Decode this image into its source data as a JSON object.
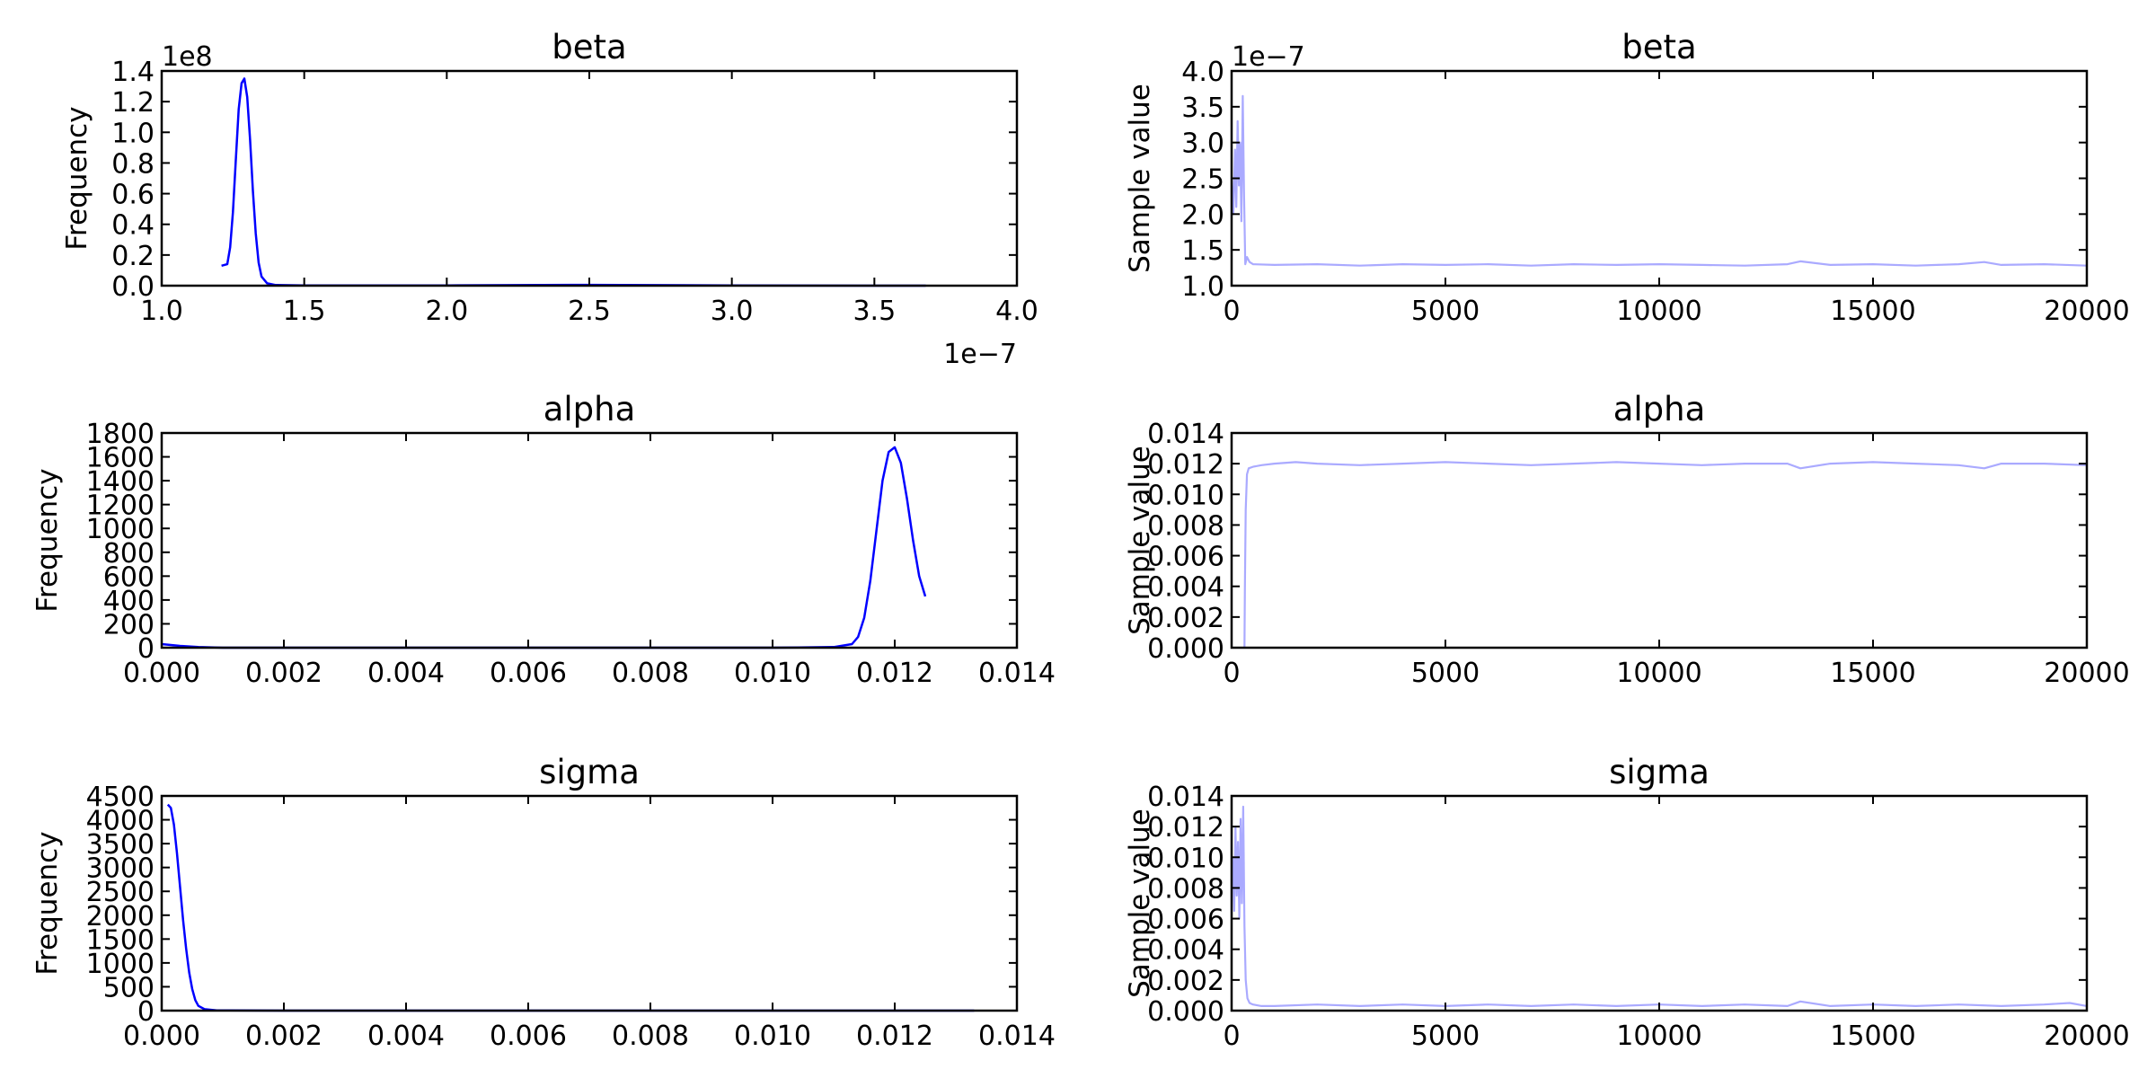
{
  "figure": {
    "colors": {
      "kde": "#0000ff",
      "trace": "#aaaaff",
      "axes": "#000000",
      "background": "#ffffff"
    }
  },
  "chart_data": [
    {
      "id": "beta-histogram",
      "type": "line",
      "title": "beta",
      "xlabel": "",
      "ylabel": "Frequency",
      "x_multiplier_label": "1e−7",
      "y_multiplier_label": "1e8",
      "xlim": [
        1.0,
        4.0
      ],
      "ylim": [
        0.0,
        1.4
      ],
      "x_ticks": [
        1.0,
        1.5,
        2.0,
        2.5,
        3.0,
        3.5,
        4.0
      ],
      "x_tick_labels": [
        "1.0",
        "1.5",
        "2.0",
        "2.5",
        "3.0",
        "3.5",
        "4.0"
      ],
      "y_ticks": [
        0.0,
        0.2,
        0.4,
        0.6,
        0.8,
        1.0,
        1.2,
        1.4
      ],
      "y_tick_labels": [
        "0.0",
        "0.2",
        "0.4",
        "0.6",
        "0.8",
        "1.0",
        "1.2",
        "1.4"
      ],
      "grid": false,
      "series": [
        {
          "values": {
            "x": [
              1.21,
              1.23,
              1.24,
              1.25,
              1.26,
              1.27,
              1.28,
              1.29,
              1.3,
              1.31,
              1.32,
              1.33,
              1.34,
              1.35,
              1.37,
              1.4,
              1.5,
              2.0,
              2.5,
              3.0,
              3.5,
              3.68
            ],
            "y": [
              0.13,
              0.14,
              0.25,
              0.48,
              0.82,
              1.15,
              1.32,
              1.35,
              1.23,
              0.95,
              0.62,
              0.34,
              0.15,
              0.06,
              0.015,
              0.004,
              0.002,
              0.002,
              0.005,
              0.002,
              0.0,
              0.0
            ]
          }
        }
      ]
    },
    {
      "id": "beta-trace",
      "type": "line",
      "title": "beta",
      "xlabel": "",
      "ylabel": "Sample value",
      "x_multiplier_label": "",
      "y_multiplier_label": "1e−7",
      "xlim": [
        0,
        20000
      ],
      "ylim": [
        1.0,
        4.0
      ],
      "x_ticks": [
        0,
        5000,
        10000,
        15000,
        20000
      ],
      "x_tick_labels": [
        "0",
        "5000",
        "10000",
        "15000",
        "20000"
      ],
      "y_ticks": [
        1.0,
        1.5,
        2.0,
        2.5,
        3.0,
        3.5,
        4.0
      ],
      "y_tick_labels": [
        "1.0",
        "1.5",
        "2.0",
        "2.5",
        "3.0",
        "3.5",
        "4.0"
      ],
      "grid": false,
      "series": [
        {
          "values": {
            "x": [
              0,
              40,
              80,
              110,
              140,
              170,
              200,
              230,
              260,
              290,
              320,
              360,
              420,
              500,
              1000,
              2000,
              3000,
              4000,
              5000,
              6000,
              7000,
              8000,
              9000,
              10000,
              11000,
              12000,
              13000,
              13300,
              14000,
              15000,
              16000,
              17000,
              17600,
              18000,
              19000,
              20000
            ],
            "y": [
              2.5,
              2.0,
              2.9,
              2.1,
              3.3,
              2.4,
              3.0,
              1.9,
              3.65,
              2.3,
              1.3,
              1.4,
              1.33,
              1.3,
              1.29,
              1.3,
              1.28,
              1.3,
              1.29,
              1.3,
              1.28,
              1.3,
              1.29,
              1.3,
              1.29,
              1.28,
              1.3,
              1.34,
              1.29,
              1.3,
              1.28,
              1.3,
              1.33,
              1.29,
              1.3,
              1.28
            ]
          }
        }
      ]
    },
    {
      "id": "alpha-histogram",
      "type": "line",
      "title": "alpha",
      "xlabel": "",
      "ylabel": "Frequency",
      "x_multiplier_label": "",
      "y_multiplier_label": "",
      "xlim": [
        0.0,
        0.014
      ],
      "ylim": [
        0,
        1800
      ],
      "x_ticks": [
        0.0,
        0.002,
        0.004,
        0.006,
        0.008,
        0.01,
        0.012,
        0.014
      ],
      "x_tick_labels": [
        "0.000",
        "0.002",
        "0.004",
        "0.006",
        "0.008",
        "0.010",
        "0.012",
        "0.014"
      ],
      "y_ticks": [
        0,
        200,
        400,
        600,
        800,
        1000,
        1200,
        1400,
        1600,
        1800
      ],
      "y_tick_labels": [
        "0",
        "200",
        "400",
        "600",
        "800",
        "1000",
        "1200",
        "1400",
        "1600",
        "1800"
      ],
      "grid": false,
      "series": [
        {
          "values": {
            "x": [
              0.0,
              0.0003,
              0.0006,
              0.001,
              0.005,
              0.01,
              0.011,
              0.0113,
              0.0114,
              0.0115,
              0.0116,
              0.0117,
              0.0118,
              0.0119,
              0.012,
              0.0121,
              0.0122,
              0.0123,
              0.0124,
              0.0125
            ],
            "y": [
              30,
              15,
              5,
              0,
              0,
              0,
              5,
              30,
              90,
              250,
              560,
              980,
              1400,
              1640,
              1680,
              1550,
              1250,
              900,
              600,
              430
            ]
          }
        }
      ]
    },
    {
      "id": "alpha-trace",
      "type": "line",
      "title": "alpha",
      "xlabel": "",
      "ylabel": "Sample value",
      "x_multiplier_label": "",
      "y_multiplier_label": "",
      "xlim": [
        0,
        20000
      ],
      "ylim": [
        0.0,
        0.014
      ],
      "x_ticks": [
        0,
        5000,
        10000,
        15000,
        20000
      ],
      "x_tick_labels": [
        "0",
        "5000",
        "10000",
        "15000",
        "20000"
      ],
      "y_ticks": [
        0.0,
        0.002,
        0.004,
        0.006,
        0.008,
        0.01,
        0.012,
        0.014
      ],
      "y_tick_labels": [
        "0.000",
        "0.002",
        "0.004",
        "0.006",
        "0.008",
        "0.010",
        "0.012",
        "0.014"
      ],
      "grid": false,
      "series": [
        {
          "values": {
            "x": [
              300,
              310,
              330,
              360,
              400,
              500,
              700,
              1000,
              1500,
              2000,
              3000,
              4000,
              5000,
              6000,
              7000,
              8000,
              9000,
              10000,
              11000,
              12000,
              13000,
              13300,
              14000,
              15000,
              16000,
              17000,
              17600,
              18000,
              19000,
              20000
            ],
            "y": [
              0.0,
              0.004,
              0.009,
              0.0113,
              0.0117,
              0.0118,
              0.0119,
              0.012,
              0.0121,
              0.012,
              0.0119,
              0.012,
              0.0121,
              0.012,
              0.0119,
              0.012,
              0.0121,
              0.012,
              0.0119,
              0.012,
              0.012,
              0.0117,
              0.012,
              0.0121,
              0.012,
              0.0119,
              0.0117,
              0.012,
              0.012,
              0.0119
            ]
          }
        }
      ]
    },
    {
      "id": "sigma-histogram",
      "type": "line",
      "title": "sigma",
      "xlabel": "",
      "ylabel": "Frequency",
      "x_multiplier_label": "",
      "y_multiplier_label": "",
      "xlim": [
        0.0,
        0.014
      ],
      "ylim": [
        0,
        4500
      ],
      "x_ticks": [
        0.0,
        0.002,
        0.004,
        0.006,
        0.008,
        0.01,
        0.012,
        0.014
      ],
      "x_tick_labels": [
        "0.000",
        "0.002",
        "0.004",
        "0.006",
        "0.008",
        "0.010",
        "0.012",
        "0.014"
      ],
      "y_ticks": [
        0,
        500,
        1000,
        1500,
        2000,
        2500,
        3000,
        3500,
        4000,
        4500
      ],
      "y_tick_labels": [
        "0",
        "500",
        "1000",
        "1500",
        "2000",
        "2500",
        "3000",
        "3500",
        "4000",
        "4500"
      ],
      "grid": false,
      "series": [
        {
          "values": {
            "x": [
              0.0001,
              0.00015,
              0.0002,
              0.00025,
              0.0003,
              0.00035,
              0.0004,
              0.00045,
              0.0005,
              0.00055,
              0.0006,
              0.0007,
              0.0009,
              0.002,
              0.005,
              0.01,
              0.0133
            ],
            "y": [
              4320,
              4250,
              3900,
              3300,
              2600,
              1900,
              1300,
              800,
              450,
              220,
              100,
              30,
              5,
              0,
              0,
              0,
              0
            ]
          }
        }
      ]
    },
    {
      "id": "sigma-trace",
      "type": "line",
      "title": "sigma",
      "xlabel": "",
      "ylabel": "Sample value",
      "x_multiplier_label": "",
      "y_multiplier_label": "",
      "xlim": [
        0,
        20000
      ],
      "ylim": [
        0.0,
        0.014
      ],
      "x_ticks": [
        0,
        5000,
        10000,
        15000,
        20000
      ],
      "x_tick_labels": [
        "0",
        "5000",
        "10000",
        "15000",
        "20000"
      ],
      "y_ticks": [
        0.0,
        0.002,
        0.004,
        0.006,
        0.008,
        0.01,
        0.012,
        0.014
      ],
      "y_tick_labels": [
        "0.000",
        "0.002",
        "0.004",
        "0.006",
        "0.008",
        "0.010",
        "0.012",
        "0.014"
      ],
      "grid": false,
      "series": [
        {
          "values": {
            "x": [
              0,
              30,
              60,
              90,
              120,
              150,
              180,
              210,
              240,
              270,
              300,
              330,
              370,
              420,
              500,
              700,
              1000,
              2000,
              3000,
              4000,
              5000,
              6000,
              7000,
              8000,
              9000,
              10000,
              11000,
              12000,
              13000,
              13300,
              14000,
              15000,
              16000,
              17000,
              18000,
              19000,
              19600,
              20000
            ],
            "y": [
              0.0085,
              0.01,
              0.0065,
              0.012,
              0.0075,
              0.011,
              0.006,
              0.0125,
              0.007,
              0.0133,
              0.0055,
              0.002,
              0.0008,
              0.0005,
              0.0004,
              0.0003,
              0.0003,
              0.0004,
              0.0003,
              0.0004,
              0.0003,
              0.0004,
              0.0003,
              0.0004,
              0.0003,
              0.0004,
              0.0003,
              0.0004,
              0.0003,
              0.0006,
              0.0003,
              0.0004,
              0.0003,
              0.0004,
              0.0003,
              0.0004,
              0.0005,
              0.0003
            ]
          }
        }
      ]
    }
  ]
}
